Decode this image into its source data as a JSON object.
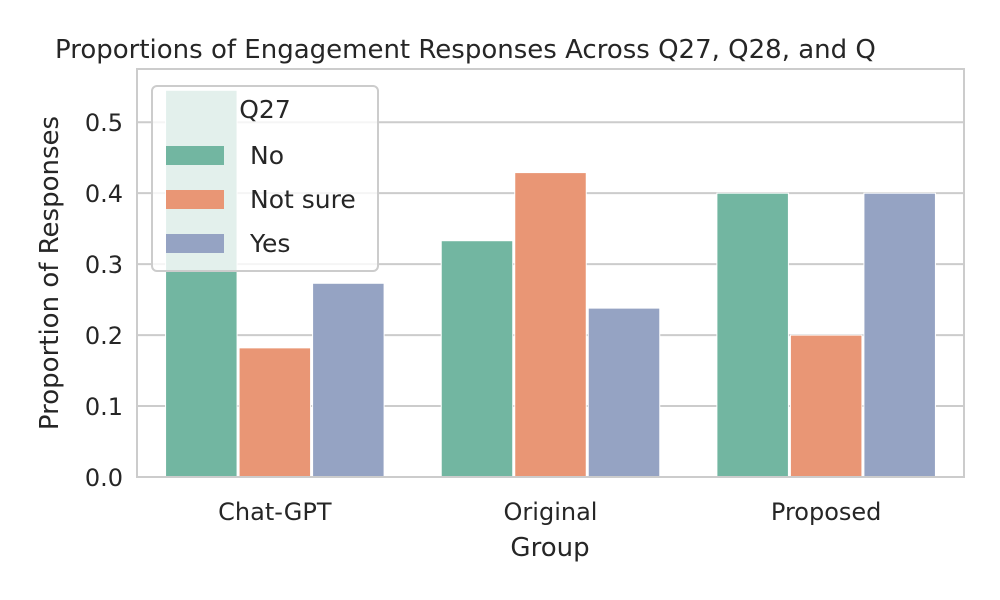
{
  "chart_data": {
    "type": "bar",
    "title": "Proportions of Engagement Responses Across Q27, Q28, and Q",
    "xlabel": "Group",
    "ylabel": "Proportion of Responses",
    "categories": [
      "Chat-GPT",
      "Original",
      "Proposed"
    ],
    "series": [
      {
        "name": "No",
        "color": "#72b6a1",
        "values": [
          0.545,
          0.333,
          0.4
        ]
      },
      {
        "name": "Not sure",
        "color": "#e99675",
        "values": [
          0.182,
          0.429,
          0.2
        ]
      },
      {
        "name": "Yes",
        "color": "#95a3c3",
        "values": [
          0.273,
          0.238,
          0.4
        ]
      }
    ],
    "ylim": [
      0,
      0.575
    ],
    "yticks": [
      "0.0",
      "0.1",
      "0.2",
      "0.3",
      "0.4",
      "0.5"
    ],
    "grid": true,
    "legend": {
      "title": "Q27",
      "placement": "top-left"
    }
  }
}
